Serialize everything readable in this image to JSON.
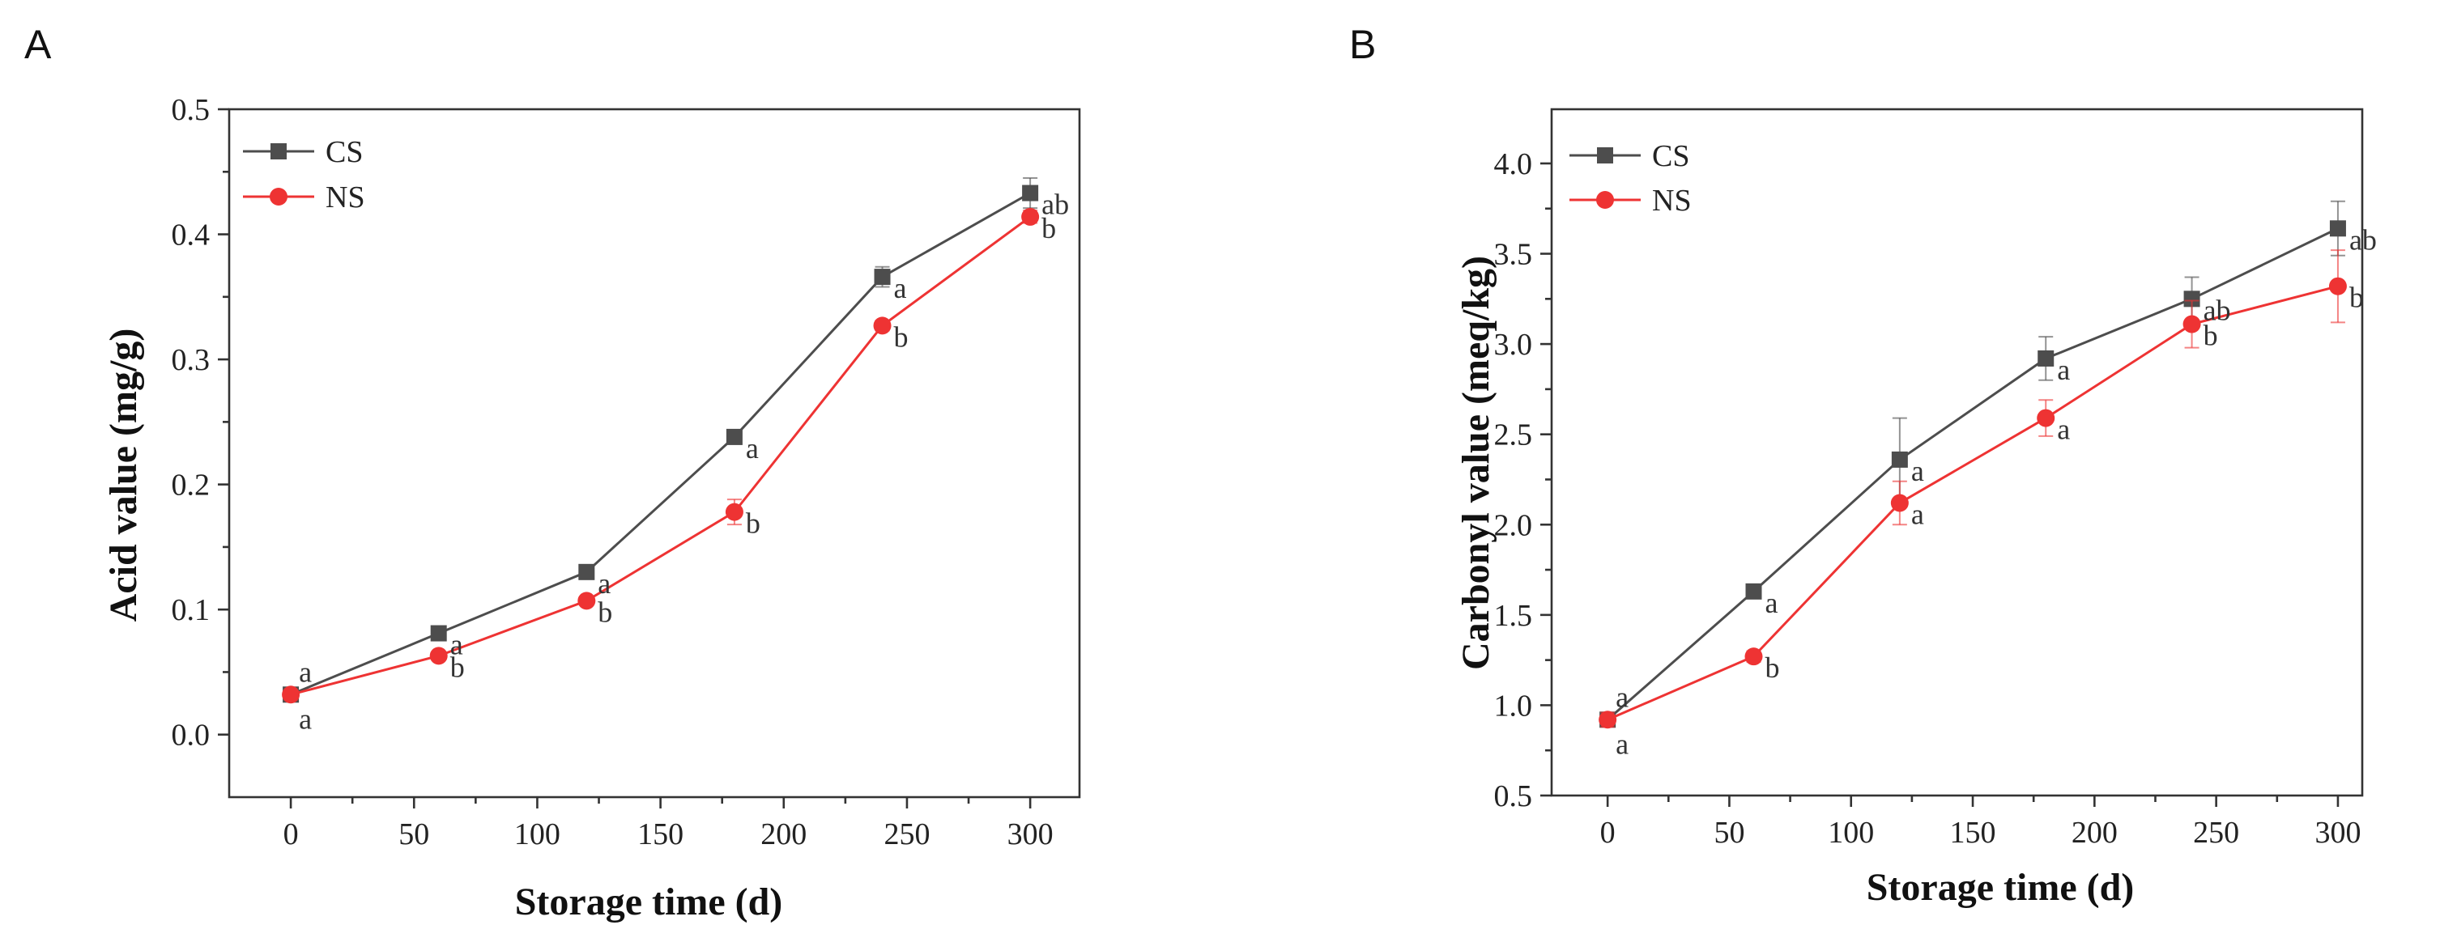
{
  "chart_data": [
    {
      "type": "line",
      "panel": "A",
      "title": "",
      "xlabel": "Storage time (d)",
      "ylabel": "Acid value (mg/g)",
      "xlim": [
        -25,
        320
      ],
      "ylim": [
        -0.05,
        0.5
      ],
      "xticks": [
        0,
        50,
        100,
        150,
        200,
        250,
        300
      ],
      "yticks": [
        0.0,
        0.1,
        0.2,
        0.3,
        0.4,
        0.5
      ],
      "ytick_decimals": 1,
      "legend_position": "top-left",
      "x": [
        0,
        60,
        120,
        180,
        240,
        300
      ],
      "series": [
        {
          "name": "CS",
          "color": "#4d4d4d",
          "marker": "square",
          "values": [
            0.032,
            0.081,
            0.13,
            0.238,
            0.366,
            0.433
          ],
          "errors": [
            0.003,
            0.003,
            0.003,
            0.004,
            0.008,
            0.012
          ],
          "labels": [
            "a",
            "a",
            "a",
            "a",
            "a",
            "ab"
          ]
        },
        {
          "name": "NS",
          "color": "#ee3333",
          "marker": "circle",
          "values": [
            0.032,
            0.063,
            0.107,
            0.178,
            0.327,
            0.414
          ],
          "errors": [
            0.002,
            0.002,
            0.003,
            0.01,
            0.004,
            0.005
          ],
          "labels": [
            "a",
            "b",
            "b",
            "b",
            "b",
            "b"
          ]
        }
      ]
    },
    {
      "type": "line",
      "panel": "B",
      "title": "",
      "xlabel": "Storage time (d)",
      "ylabel": "Carbonyl value (meq/kg)",
      "xlim": [
        -23,
        310
      ],
      "ylim": [
        0.5,
        4.3
      ],
      "xticks": [
        0,
        50,
        100,
        150,
        200,
        250,
        300
      ],
      "yticks": [
        0.5,
        1.0,
        1.5,
        2.0,
        2.5,
        3.0,
        3.5,
        4.0
      ],
      "ytick_decimals": 1,
      "legend_position": "top-left",
      "x": [
        0,
        60,
        120,
        180,
        240,
        300
      ],
      "series": [
        {
          "name": "CS",
          "color": "#4d4d4d",
          "marker": "square",
          "values": [
            0.92,
            1.63,
            2.36,
            2.92,
            3.25,
            3.64
          ],
          "errors": [
            0.03,
            0.03,
            0.23,
            0.12,
            0.12,
            0.15
          ],
          "labels": [
            "a",
            "a",
            "a",
            "a",
            "ab",
            "ab"
          ]
        },
        {
          "name": "NS",
          "color": "#ee3333",
          "marker": "circle",
          "values": [
            0.92,
            1.27,
            2.12,
            2.59,
            3.11,
            3.32
          ],
          "errors": [
            0.04,
            0.03,
            0.12,
            0.1,
            0.13,
            0.2
          ],
          "labels": [
            "a",
            "b",
            "a",
            "a",
            "b",
            "b"
          ]
        }
      ]
    }
  ]
}
